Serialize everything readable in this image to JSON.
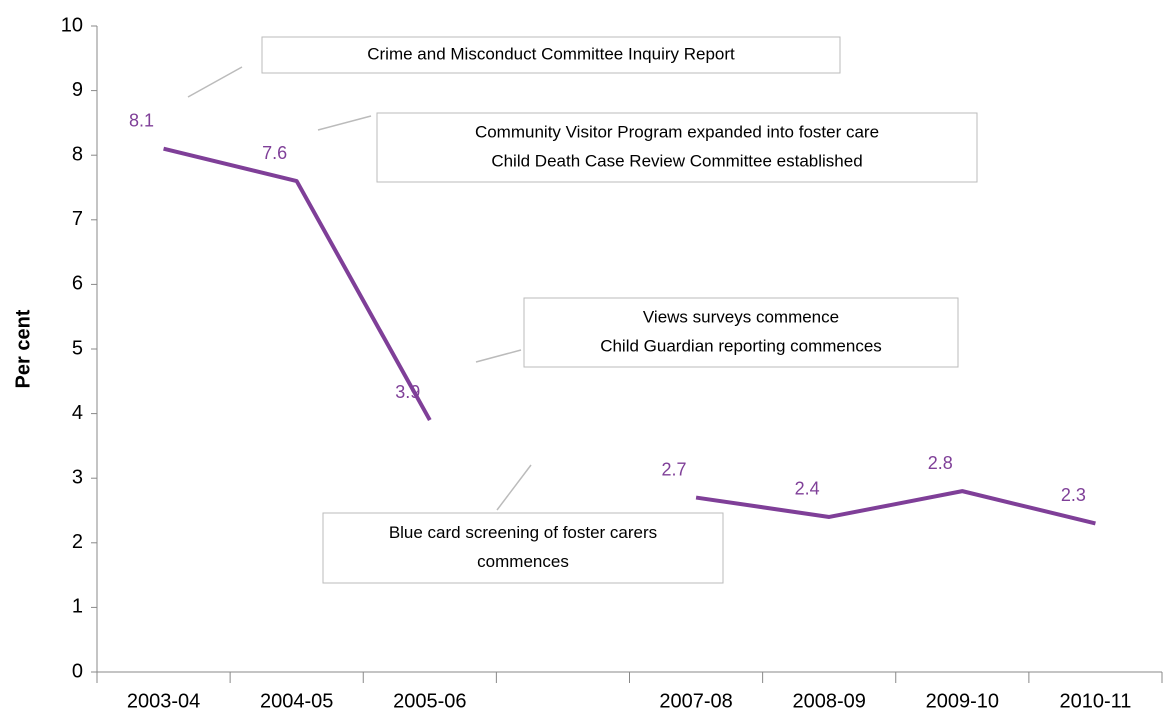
{
  "chart_data": {
    "type": "line",
    "y_label": "Per cent",
    "categories": [
      "2003-04",
      "2004-05",
      "2005-06",
      null,
      "2007-08",
      "2008-09",
      "2009-10",
      "2010-11"
    ],
    "values": [
      8.1,
      7.6,
      3.9,
      null,
      2.7,
      2.4,
      2.8,
      2.3
    ],
    "color": "#7f3f98",
    "ylim": [
      0,
      10
    ],
    "yticks": [
      0,
      1,
      2,
      3,
      4,
      5,
      6,
      7,
      8,
      9,
      10
    ],
    "grid": false,
    "annotations": [
      {
        "lines": [
          "Crime and Misconduct Committee Inquiry Report"
        ]
      },
      {
        "lines": [
          "Community Visitor Program expanded into foster care",
          "Child Death Case Review Committee established"
        ]
      },
      {
        "lines": [
          "Views surveys commence",
          "Child Guardian reporting commences"
        ]
      },
      {
        "lines": [
          "Blue card screening of foster carers",
          "commences"
        ]
      }
    ]
  }
}
